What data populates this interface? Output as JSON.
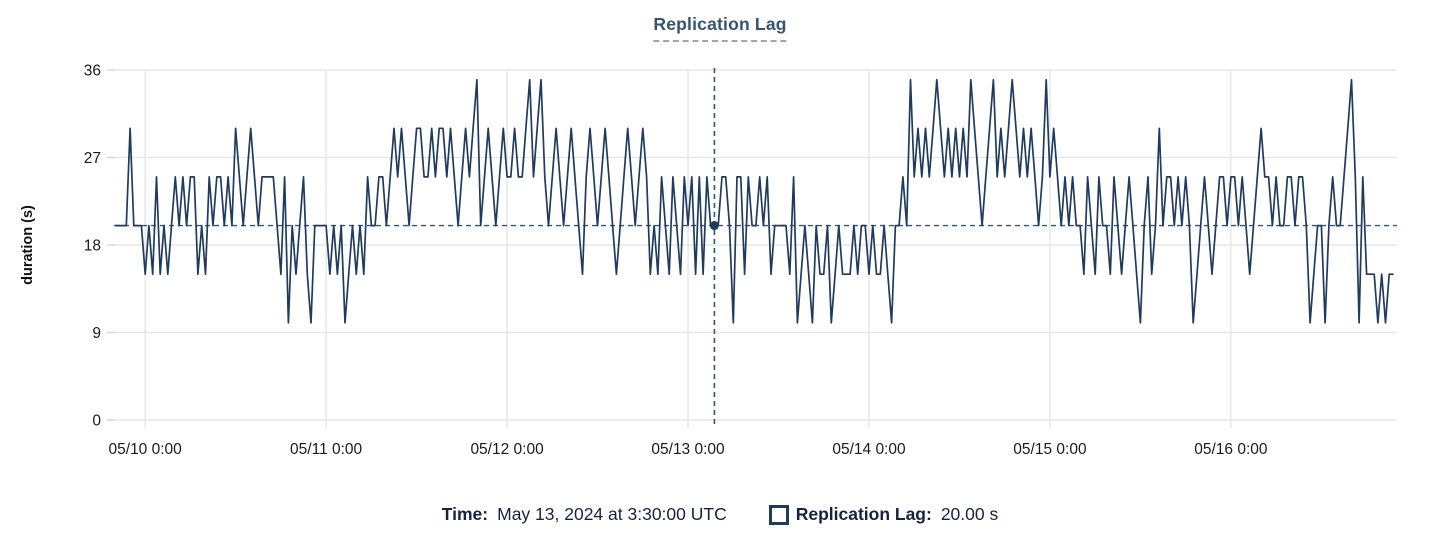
{
  "title": "Replication Lag",
  "footer": {
    "time_label": "Time:",
    "time_value": "May 13, 2024 at 3:30:00 UTC",
    "series_label": "Replication Lag:",
    "series_value": "20.00 s"
  },
  "colors": {
    "line": "#1f3b5e",
    "grid": "#e7e7e7",
    "tick_text": "#1a1a1a",
    "axis_title": "#111111",
    "crosshair": "#2e5a70",
    "title_navy": "#36536f"
  },
  "chart_data": {
    "type": "line",
    "title": "Replication Lag",
    "series_name": "Replication Lag",
    "xlabel": "",
    "ylabel": "duration (s)",
    "ylim": [
      0,
      36
    ],
    "y_ticks": [
      0,
      9,
      18,
      27,
      36
    ],
    "grid": true,
    "legend_position": "bottom",
    "x_start": "05/09 20:00",
    "interval_minutes": 30,
    "x_ticks": [
      {
        "index": 8,
        "label": "05/10 0:00"
      },
      {
        "index": 56,
        "label": "05/11 0:00"
      },
      {
        "index": 104,
        "label": "05/12 0:00"
      },
      {
        "index": 152,
        "label": "05/13 0:00"
      },
      {
        "index": 200,
        "label": "05/14 0:00"
      },
      {
        "index": 248,
        "label": "05/15 0:00"
      },
      {
        "index": 296,
        "label": "05/16 0:00"
      }
    ],
    "crosshair": {
      "index": 159,
      "value": 20,
      "time_label": "May 13, 2024 at 3:30:00 UTC",
      "value_label": "20.00 s"
    },
    "values": [
      20,
      20,
      20,
      20,
      30,
      20,
      20,
      20,
      15,
      20,
      15,
      25,
      15,
      20,
      15,
      20,
      25,
      20,
      25,
      20,
      25,
      25,
      15,
      20,
      15,
      25,
      20,
      25,
      25,
      20,
      25,
      20,
      30,
      25,
      20,
      25,
      30,
      25,
      20,
      25,
      25,
      25,
      25,
      20,
      15,
      25,
      10,
      20,
      15,
      20,
      25,
      15,
      10,
      20,
      20,
      20,
      20,
      15,
      20,
      15,
      20,
      10,
      15,
      20,
      15,
      20,
      15,
      25,
      20,
      20,
      25,
      25,
      20,
      25,
      30,
      25,
      30,
      25,
      20,
      25,
      30,
      30,
      25,
      25,
      30,
      25,
      30,
      30,
      25,
      30,
      25,
      20,
      25,
      30,
      25,
      30,
      35,
      20,
      25,
      30,
      25,
      20,
      25,
      30,
      25,
      25,
      30,
      25,
      25,
      30,
      35,
      25,
      30,
      35,
      25,
      20,
      25,
      30,
      25,
      20,
      25,
      30,
      25,
      20,
      15,
      25,
      30,
      25,
      20,
      25,
      30,
      25,
      20,
      15,
      20,
      25,
      30,
      25,
      20,
      25,
      30,
      25,
      15,
      20,
      15,
      25,
      20,
      15,
      25,
      20,
      15,
      25,
      20,
      25,
      15,
      25,
      15,
      25,
      20,
      20,
      20,
      25,
      25,
      20,
      10,
      25,
      25,
      15,
      25,
      20,
      20,
      25,
      20,
      25,
      15,
      20,
      20,
      20,
      20,
      15,
      25,
      10,
      15,
      20,
      15,
      10,
      20,
      15,
      15,
      20,
      10,
      15,
      20,
      15,
      15,
      15,
      20,
      15,
      20,
      20,
      15,
      20,
      15,
      15,
      20,
      15,
      10,
      20,
      20,
      25,
      20,
      35,
      25,
      30,
      25,
      30,
      25,
      30,
      35,
      30,
      25,
      30,
      25,
      30,
      25,
      30,
      25,
      35,
      30,
      25,
      20,
      25,
      30,
      35,
      25,
      30,
      25,
      30,
      35,
      30,
      25,
      30,
      25,
      30,
      25,
      20,
      25,
      35,
      25,
      30,
      25,
      20,
      25,
      20,
      25,
      20,
      20,
      15,
      25,
      20,
      15,
      25,
      20,
      20,
      15,
      25,
      20,
      15,
      20,
      25,
      20,
      15,
      10,
      20,
      25,
      15,
      20,
      30,
      20,
      25,
      25,
      20,
      25,
      20,
      25,
      20,
      10,
      15,
      20,
      25,
      20,
      15,
      20,
      25,
      25,
      20,
      25,
      25,
      20,
      25,
      20,
      15,
      20,
      25,
      30,
      25,
      25,
      20,
      25,
      20,
      20,
      25,
      25,
      20,
      25,
      25,
      20,
      10,
      15,
      20,
      20,
      10,
      20,
      25,
      20,
      20,
      25,
      30,
      35,
      25,
      10,
      25,
      15,
      15,
      15,
      10,
      15,
      10,
      15,
      15
    ]
  }
}
